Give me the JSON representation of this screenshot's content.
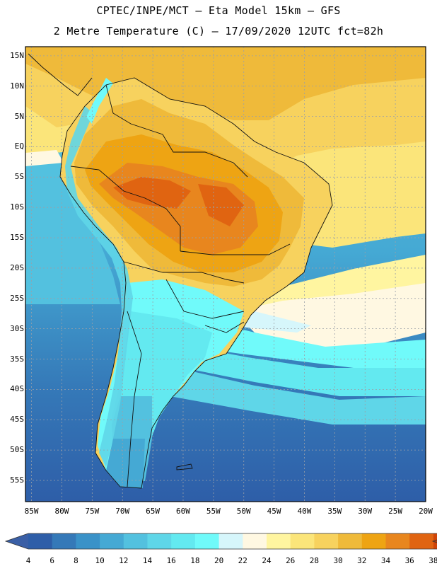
{
  "header": {
    "line1": "CPTEC/INPE/MCT –  Eta Model 15km – GFS",
    "line2": "2 Metre Temperature (C) – 17/09/2020 12UTC fct=82h"
  },
  "map": {
    "lat_labels": [
      "15N",
      "10N",
      "5N",
      "EQ",
      "5S",
      "10S",
      "15S",
      "20S",
      "25S",
      "30S",
      "35S",
      "40S",
      "45S",
      "50S",
      "55S"
    ],
    "lon_labels": [
      "85W",
      "80W",
      "75W",
      "70W",
      "65W",
      "60W",
      "55W",
      "50W",
      "45W",
      "40W",
      "35W",
      "30W",
      "25W",
      "20W"
    ],
    "lat_range": [
      16.5,
      -58.5
    ],
    "lon_range": [
      -86,
      -20
    ]
  },
  "colorbar": {
    "values": [
      "4",
      "6",
      "8",
      "10",
      "12",
      "14",
      "16",
      "18",
      "20",
      "22",
      "24",
      "26",
      "28",
      "30",
      "32",
      "34",
      "36",
      "38"
    ],
    "colors": [
      "#2e5ea8",
      "#3579b8",
      "#3a92c8",
      "#45a9d4",
      "#53c1df",
      "#5fd6e8",
      "#63e9f0",
      "#70fafa",
      "#d6f6fb",
      "#fff8e2",
      "#fff5a0",
      "#fbe57a",
      "#f7d25e",
      "#efba3a",
      "#eea413",
      "#e8861e",
      "#e06411",
      "#cf4509"
    ],
    "left_arrow_color": "#3a5fa6",
    "right_arrow_color": "#b8400c"
  }
}
